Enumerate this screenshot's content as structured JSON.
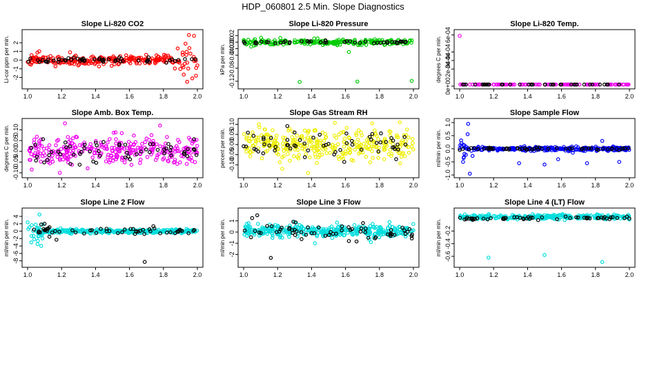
{
  "figure": {
    "title": "HDP_060801  2.5 Min. Slope Diagnostics"
  },
  "chart_data": [
    {
      "type": "scatter",
      "title": "Slope Li-820 CO2",
      "ylabel": "Li-cor ppm per min.",
      "xlabel": "",
      "xlim": [
        1.0,
        2.0
      ],
      "ylim": [
        -3,
        3.2
      ],
      "xticks": [
        "1.0",
        "1.2",
        "1.4",
        "1.6",
        "1.8",
        "2.0"
      ],
      "yticks": [
        -2,
        -1,
        0,
        1,
        2
      ],
      "ytick_labels": [
        "-2",
        "-1",
        "0",
        "1",
        "2"
      ],
      "colors": {
        "primary": "#ff0000",
        "secondary": "#000000"
      },
      "series": [
        {
          "name": "primary",
          "color": "#ff0000",
          "gen": {
            "n": 260,
            "seed": 11,
            "center": 0.0,
            "spread": 0.38,
            "late": {
              "from": 1.85,
              "spread": 1.2
            },
            "outliers": [
              [
                1.95,
                2.9
              ],
              [
                1.98,
                2.8
              ],
              [
                1.94,
                -2.5
              ],
              [
                1.97,
                -2.1
              ],
              [
                1.93,
                1.9
              ],
              [
                1.25,
                0.9
              ]
            ]
          }
        },
        {
          "name": "secondary",
          "color": "#000000",
          "gen": {
            "n": 55,
            "seed": 12,
            "center": 0.0,
            "spread": 0.22
          }
        }
      ]
    },
    {
      "type": "scatter",
      "title": "Slope Li-820 Pressure",
      "ylabel": "kPa per min.",
      "xlabel": "",
      "xlim": [
        1.0,
        2.0
      ],
      "ylim": [
        -0.135,
        0.03
      ],
      "xticks": [
        "1.0",
        "1.2",
        "1.4",
        "1.6",
        "1.8",
        "2.0"
      ],
      "yticks": [
        -0.12,
        -0.08,
        -0.04,
        -0.02,
        0.0,
        0.02
      ],
      "ytick_labels": [
        "-0.12",
        "-0.08",
        "-0.04",
        "-0.02",
        "0.00",
        "0.02"
      ],
      "colors": {
        "primary": "#00cc00",
        "secondary": "#000000"
      },
      "series": [
        {
          "name": "primary",
          "color": "#00cc00",
          "gen": {
            "n": 230,
            "seed": 21,
            "center": 0.0,
            "spread": 0.006,
            "outliers": [
              [
                1.33,
                -0.122
              ],
              [
                1.67,
                -0.121
              ],
              [
                1.99,
                -0.119
              ],
              [
                1.62,
                -0.03
              ]
            ]
          }
        },
        {
          "name": "secondary",
          "color": "#000000",
          "gen": {
            "n": 45,
            "seed": 22,
            "center": 0.0,
            "spread": 0.003
          }
        }
      ]
    },
    {
      "type": "scatter",
      "title": "Slope Li-820 Temp.",
      "ylabel": "degrees C per min.",
      "xlabel": "",
      "xlim": [
        1.0,
        2.0
      ],
      "ylim": [
        0,
        0.00063
      ],
      "xticks": [
        "1.0",
        "1.2",
        "1.4",
        "1.6",
        "1.8",
        "2.0"
      ],
      "yticks": [
        0,
        0.0002,
        0.0003,
        0.0004,
        0.0006
      ],
      "ytick_labels": [
        "0e+00",
        "2e-04",
        "3e-04",
        "4e-04",
        "6e-04"
      ],
      "colors": {
        "primary": "#ee00ee",
        "secondary": "#000000"
      },
      "series": [
        {
          "name": "primary",
          "color": "#ee00ee",
          "gen": {
            "n": 140,
            "seed": 31,
            "center": 0.0,
            "spread": 0.0,
            "outliers": [
              [
                1.0,
                0.00059
              ]
            ]
          }
        },
        {
          "name": "secondary",
          "color": "#000000",
          "gen": {
            "n": 40,
            "seed": 32,
            "center": 0.0,
            "spread": 0.0
          }
        }
      ]
    },
    {
      "type": "scatter",
      "title": "Slope Amb. Box Temp.",
      "ylabel": "degrees C per min.",
      "xlabel": "",
      "xlim": [
        1.0,
        2.0
      ],
      "ylim": [
        -0.11,
        0.14
      ],
      "xticks": [
        "1.0",
        "1.2",
        "1.4",
        "1.6",
        "1.8",
        "2.0"
      ],
      "yticks": [
        -0.1,
        -0.05,
        0.0,
        0.05,
        0.1
      ],
      "ytick_labels": [
        "-0.10",
        "-0.05",
        "0.00",
        "0.05",
        "0.10"
      ],
      "colors": {
        "primary": "#ee00ee",
        "secondary": "#000000"
      },
      "series": [
        {
          "name": "primary",
          "color": "#ee00ee",
          "gen": {
            "n": 300,
            "seed": 41,
            "center": 0.0,
            "spread": 0.045,
            "outliers": [
              [
                1.22,
                0.13
              ],
              [
                1.19,
                -0.1
              ],
              [
                1.78,
                0.12
              ]
            ]
          }
        },
        {
          "name": "secondary",
          "color": "#000000",
          "gen": {
            "n": 60,
            "seed": 42,
            "center": 0.0,
            "spread": 0.04
          }
        }
      ]
    },
    {
      "type": "scatter",
      "title": "Slope Gas Stream RH",
      "ylabel": "percent per min.",
      "xlabel": "",
      "xlim": [
        1.0,
        2.0
      ],
      "ylim": [
        -0.15,
        0.115
      ],
      "xticks": [
        "1.0",
        "1.2",
        "1.4",
        "1.6",
        "1.8",
        "2.0"
      ],
      "yticks": [
        -0.1,
        -0.05,
        0.0,
        0.05,
        0.1
      ],
      "ytick_labels": [
        "-0.10",
        "-0.05",
        "0.00",
        "0.05",
        "0.10"
      ],
      "colors": {
        "primary": "#ffff00",
        "secondary": "#000000"
      },
      "series": [
        {
          "name": "primary",
          "color": "#eeee00",
          "gen": {
            "n": 330,
            "seed": 51,
            "center": 0.0,
            "spread": 0.05,
            "outliers": [
              [
                1.09,
                0.1
              ],
              [
                1.38,
                -0.14
              ],
              [
                1.92,
                0.11
              ]
            ]
          }
        },
        {
          "name": "secondary",
          "color": "#000000",
          "gen": {
            "n": 60,
            "seed": 52,
            "center": 0.0,
            "spread": 0.045
          }
        }
      ]
    },
    {
      "type": "scatter",
      "title": "Slope Sample Flow",
      "ylabel": "ml/min per min.",
      "xlabel": "",
      "xlim": [
        1.0,
        2.0
      ],
      "ylim": [
        -1.0,
        1.05
      ],
      "xticks": [
        "1.0",
        "1.2",
        "1.4",
        "1.6",
        "1.8",
        "2.0"
      ],
      "yticks": [
        -1.0,
        -0.5,
        0.0,
        0.5,
        1.0
      ],
      "ytick_labels": [
        "-1.0",
        "-0.5",
        "0.0",
        "0.5",
        "1.0"
      ],
      "colors": {
        "primary": "#0000ff",
        "secondary": "#000000"
      },
      "series": [
        {
          "name": "primary",
          "color": "#0000ff",
          "gen": {
            "n": 320,
            "seed": 61,
            "center": 0.0,
            "spread": 0.05,
            "early": {
              "until": 1.08,
              "spread": 0.35
            },
            "outliers": [
              [
                1.05,
                0.95
              ],
              [
                1.06,
                -0.95
              ],
              [
                1.02,
                -0.5
              ],
              [
                1.35,
                -0.55
              ],
              [
                1.5,
                -0.6
              ],
              [
                1.58,
                -0.4
              ],
              [
                1.75,
                -0.55
              ],
              [
                1.94,
                -0.5
              ],
              [
                1.84,
                0.3
              ]
            ]
          }
        },
        {
          "name": "secondary",
          "color": "#000000",
          "gen": {
            "n": 55,
            "seed": 62,
            "center": 0.0,
            "spread": 0.03
          }
        }
      ]
    },
    {
      "type": "scatter",
      "title": "Slope Line 2 Flow",
      "ylabel": "ml/min per min.",
      "xlabel": "",
      "xlim": [
        1.0,
        2.0
      ],
      "ylim": [
        -9,
        5.5
      ],
      "xticks": [
        "1.0",
        "1.2",
        "1.4",
        "1.6",
        "1.8",
        "2.0"
      ],
      "yticks": [
        -8,
        -6,
        -4,
        -2,
        0,
        2,
        4
      ],
      "ytick_labels": [
        "-8",
        "-6",
        "-4",
        "-2",
        "0",
        "2",
        "4"
      ],
      "colors": {
        "primary": "#00eeee",
        "secondary": "#000000"
      },
      "series": [
        {
          "name": "primary",
          "color": "#00dddd",
          "gen": {
            "n": 360,
            "seed": 71,
            "center": 0.0,
            "spread": 0.35,
            "early": {
              "until": 1.09,
              "spread": 1.8
            },
            "outliers": [
              [
                1.07,
                4.5
              ],
              [
                1.08,
                -4.0
              ],
              [
                1.06,
                -2.6
              ]
            ]
          }
        },
        {
          "name": "secondary",
          "color": "#000000",
          "gen": {
            "n": 55,
            "seed": 72,
            "center": 0.0,
            "spread": 0.6,
            "outliers": [
              [
                1.69,
                -8.3
              ],
              [
                1.17,
                -2.3
              ],
              [
                1.08,
                1.8
              ],
              [
                1.1,
                2.0
              ]
            ]
          }
        }
      ]
    },
    {
      "type": "scatter",
      "title": "Slope Line 3 Flow",
      "ylabel": "ml/min per min.",
      "xlabel": "",
      "xlim": [
        1.0,
        2.0
      ],
      "ylim": [
        -2.9,
        1.9
      ],
      "xticks": [
        "1.0",
        "1.2",
        "1.4",
        "1.6",
        "1.8",
        "2.0"
      ],
      "yticks": [
        -2,
        -1,
        0,
        1
      ],
      "ytick_labels": [
        "-2",
        "-1",
        "0",
        "1"
      ],
      "colors": {
        "primary": "#00eeee",
        "secondary": "#000000"
      },
      "series": [
        {
          "name": "primary",
          "color": "#00dddd",
          "gen": {
            "n": 380,
            "seed": 81,
            "center": 0.1,
            "spread": 0.35,
            "outliers": [
              [
                1.42,
                -1.0
              ],
              [
                1.75,
                -0.9
              ],
              [
                1.3,
                0.9
              ],
              [
                1.55,
                0.85
              ]
            ]
          }
        },
        {
          "name": "secondary",
          "color": "#000000",
          "gen": {
            "n": 60,
            "seed": 82,
            "center": 0.0,
            "spread": 0.45,
            "outliers": [
              [
                1.05,
                1.25
              ],
              [
                1.08,
                1.5
              ],
              [
                1.16,
                -2.3
              ],
              [
                1.62,
                -0.8
              ],
              [
                1.99,
                -0.35
              ]
            ]
          }
        }
      ]
    },
    {
      "type": "scatter",
      "title": "Slope Line 4 (LT) Flow",
      "ylabel": "ml/min per min.",
      "xlabel": "",
      "xlim": [
        1.0,
        2.0
      ],
      "ylim": [
        -0.73,
        0.12
      ],
      "xticks": [
        "1.0",
        "1.2",
        "1.4",
        "1.6",
        "1.8",
        "2.0"
      ],
      "yticks": [
        -0.6,
        -0.4,
        -0.2
      ],
      "ytick_labels": [
        "-0.6",
        "-0.4",
        "-0.2"
      ],
      "colors": {
        "primary": "#00eeee",
        "secondary": "#000000"
      },
      "series": [
        {
          "name": "primary",
          "color": "#00dddd",
          "gen": {
            "n": 300,
            "seed": 91,
            "center": 0.02,
            "spread": 0.025,
            "outliers": [
              [
                1.17,
                -0.62
              ],
              [
                1.5,
                -0.58
              ],
              [
                1.84,
                -0.69
              ]
            ]
          }
        },
        {
          "name": "secondary",
          "color": "#000000",
          "gen": {
            "n": 55,
            "seed": 92,
            "center": 0.0,
            "spread": 0.018
          }
        }
      ]
    }
  ]
}
